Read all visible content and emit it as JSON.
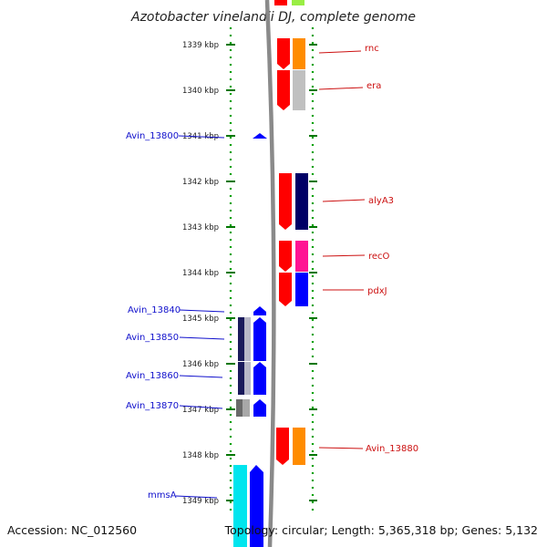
{
  "title": "Azotobacter vinelandii DJ, complete genome",
  "accession": "Accession: NC_012560",
  "topology": "Topology: circular; Length: 5,365,318 bp; Genes: 5,132",
  "colors": {
    "forward_red": "#ff0000",
    "reverse_blue": "#0000ff",
    "track_gray": "#999999",
    "left_label": "#1010cc",
    "right_label": "#cc1010",
    "orange": "#ff8c00",
    "light_gray": "#c0c0c0",
    "navy": "#000066",
    "pink": "#ff1493",
    "cyan": "#00e5ee",
    "green_tick": "#007700"
  },
  "kbp_ticks": [
    "1339 kbp",
    "1340 kbp",
    "1341 kbp",
    "1342 kbp",
    "1343 kbp",
    "1344 kbp",
    "1345 kbp",
    "1346 kbp",
    "1347 kbp",
    "1348 kbp",
    "1349 kbp"
  ],
  "left_labels": [
    "Avin_13800",
    "Avin_13840",
    "Avin_13850",
    "Avin_13860",
    "Avin_13870",
    "mmsA"
  ],
  "right_labels": [
    "rnc",
    "era",
    "alyA3",
    "recO",
    "pdxJ",
    "Avin_13880"
  ]
}
